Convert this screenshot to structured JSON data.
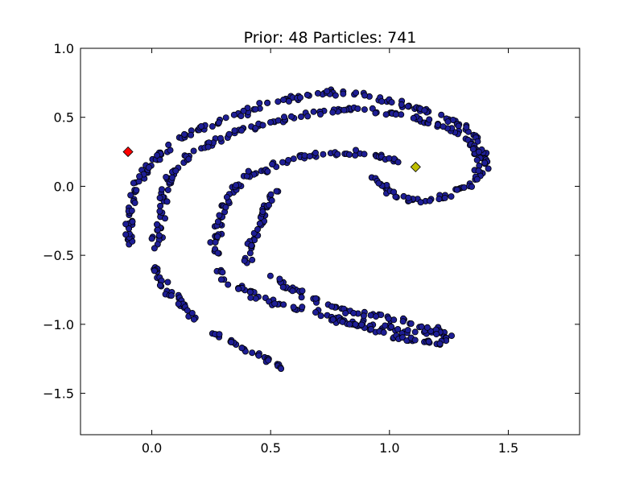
{
  "chart_data": {
    "type": "scatter",
    "title": "Prior: 48 Particles: 741",
    "xlabel": "",
    "ylabel": "",
    "xlim": [
      -0.3,
      1.8
    ],
    "ylim": [
      -1.8,
      1.0
    ],
    "x_ticks": [
      0.0,
      0.5,
      1.0,
      1.5
    ],
    "x_tick_labels": [
      "0.0",
      "0.5",
      "1.0",
      "1.5"
    ],
    "y_ticks": [
      1.0,
      0.5,
      0.0,
      -0.5,
      -1.0,
      -1.5
    ],
    "y_tick_labels": [
      "1.0",
      "0.5",
      "0.0",
      "−0.5",
      "−1.0",
      "−1.5"
    ],
    "grid": false,
    "colors": {
      "particle_fill": "#1e1e96",
      "particle_edge": "#000000",
      "marker_red": "#ff0000",
      "marker_yellow": "#bfbf00"
    },
    "particle_count": 741,
    "particle_bands": [
      {
        "points": [
          [
            -0.09,
            -0.45
          ],
          [
            -0.1,
            -0.35
          ],
          [
            -0.09,
            -0.2
          ],
          [
            -0.08,
            -0.08
          ],
          [
            -0.06,
            0.02
          ],
          [
            -0.02,
            0.12
          ],
          [
            0.03,
            0.22
          ],
          [
            0.1,
            0.32
          ],
          [
            0.18,
            0.4
          ],
          [
            0.28,
            0.47
          ],
          [
            0.38,
            0.53
          ],
          [
            0.5,
            0.6
          ],
          [
            0.62,
            0.65
          ],
          [
            0.75,
            0.68
          ],
          [
            0.88,
            0.67
          ],
          [
            1.0,
            0.62
          ],
          [
            1.1,
            0.57
          ],
          [
            1.2,
            0.52
          ],
          [
            1.3,
            0.45
          ],
          [
            1.37,
            0.35
          ],
          [
            1.41,
            0.22
          ],
          [
            1.42,
            0.13
          ]
        ],
        "spread": 0.028
      },
      {
        "points": [
          [
            0.02,
            -0.45
          ],
          [
            0.03,
            -0.33
          ],
          [
            0.04,
            -0.2
          ],
          [
            0.05,
            -0.05
          ],
          [
            0.08,
            0.07
          ],
          [
            0.13,
            0.18
          ],
          [
            0.2,
            0.28
          ],
          [
            0.3,
            0.36
          ],
          [
            0.42,
            0.43
          ],
          [
            0.55,
            0.48
          ],
          [
            0.68,
            0.53
          ],
          [
            0.8,
            0.56
          ],
          [
            0.92,
            0.56
          ],
          [
            1.03,
            0.52
          ],
          [
            1.13,
            0.48
          ],
          [
            1.22,
            0.44
          ],
          [
            1.3,
            0.38
          ],
          [
            1.36,
            0.28
          ],
          [
            1.38,
            0.18
          ],
          [
            1.37,
            0.08
          ],
          [
            1.33,
            0.0
          ],
          [
            1.25,
            -0.06
          ],
          [
            1.18,
            -0.1
          ],
          [
            1.1,
            -0.1
          ],
          [
            1.02,
            -0.07
          ],
          [
            0.97,
            0.0
          ],
          [
            0.92,
            0.08
          ]
        ],
        "spread": 0.03
      },
      {
        "points": [
          [
            0.01,
            -0.55
          ],
          [
            0.02,
            -0.63
          ],
          [
            0.05,
            -0.72
          ],
          [
            0.1,
            -0.82
          ],
          [
            0.15,
            -0.9
          ],
          [
            0.2,
            -0.96
          ]
        ],
        "spread": 0.035
      },
      {
        "points": [
          [
            0.25,
            -1.05
          ],
          [
            0.3,
            -1.1
          ],
          [
            0.36,
            -1.15
          ],
          [
            0.42,
            -1.2
          ],
          [
            0.48,
            -1.25
          ],
          [
            0.53,
            -1.3
          ],
          [
            0.56,
            -1.33
          ]
        ],
        "spread": 0.022
      },
      {
        "points": [
          [
            0.27,
            -0.5
          ],
          [
            0.27,
            -0.38
          ],
          [
            0.29,
            -0.25
          ],
          [
            0.31,
            -0.12
          ],
          [
            0.36,
            0.0
          ],
          [
            0.44,
            0.1
          ],
          [
            0.54,
            0.17
          ],
          [
            0.65,
            0.22
          ],
          [
            0.76,
            0.24
          ],
          [
            0.88,
            0.24
          ],
          [
            0.98,
            0.21
          ],
          [
            1.05,
            0.16
          ]
        ],
        "spread": 0.032
      },
      {
        "points": [
          [
            0.28,
            -0.6
          ],
          [
            0.32,
            -0.68
          ],
          [
            0.4,
            -0.76
          ],
          [
            0.5,
            -0.83
          ],
          [
            0.6,
            -0.88
          ],
          [
            0.7,
            -0.93
          ],
          [
            0.8,
            -0.97
          ],
          [
            0.9,
            -1.0
          ],
          [
            1.0,
            -1.03
          ],
          [
            1.1,
            -1.05
          ],
          [
            1.2,
            -1.05
          ],
          [
            1.25,
            -1.08
          ]
        ],
        "spread": 0.035
      },
      {
        "points": [
          [
            0.4,
            -0.55
          ],
          [
            0.42,
            -0.43
          ],
          [
            0.45,
            -0.32
          ],
          [
            0.47,
            -0.2
          ],
          [
            0.5,
            -0.1
          ],
          [
            0.53,
            -0.02
          ]
        ],
        "spread": 0.03
      },
      {
        "points": [
          [
            0.5,
            -0.66
          ],
          [
            0.58,
            -0.74
          ],
          [
            0.68,
            -0.82
          ],
          [
            0.78,
            -0.88
          ],
          [
            0.88,
            -0.92
          ],
          [
            0.98,
            -0.95
          ],
          [
            1.08,
            -0.98
          ],
          [
            1.18,
            -1.05
          ],
          [
            1.25,
            -1.12
          ]
        ],
        "spread": 0.03
      },
      {
        "points": [
          [
            0.75,
            -0.95
          ],
          [
            0.85,
            -1.0
          ],
          [
            0.95,
            -1.05
          ],
          [
            1.05,
            -1.1
          ],
          [
            1.15,
            -1.13
          ],
          [
            1.22,
            -1.13
          ]
        ],
        "spread": 0.025
      }
    ],
    "special_markers": [
      {
        "name": "red-diamond",
        "x": -0.1,
        "y": 0.25,
        "color": "#ff0000"
      },
      {
        "name": "yellow-diamond",
        "x": 1.11,
        "y": 0.14,
        "color": "#bfbf00"
      }
    ]
  }
}
